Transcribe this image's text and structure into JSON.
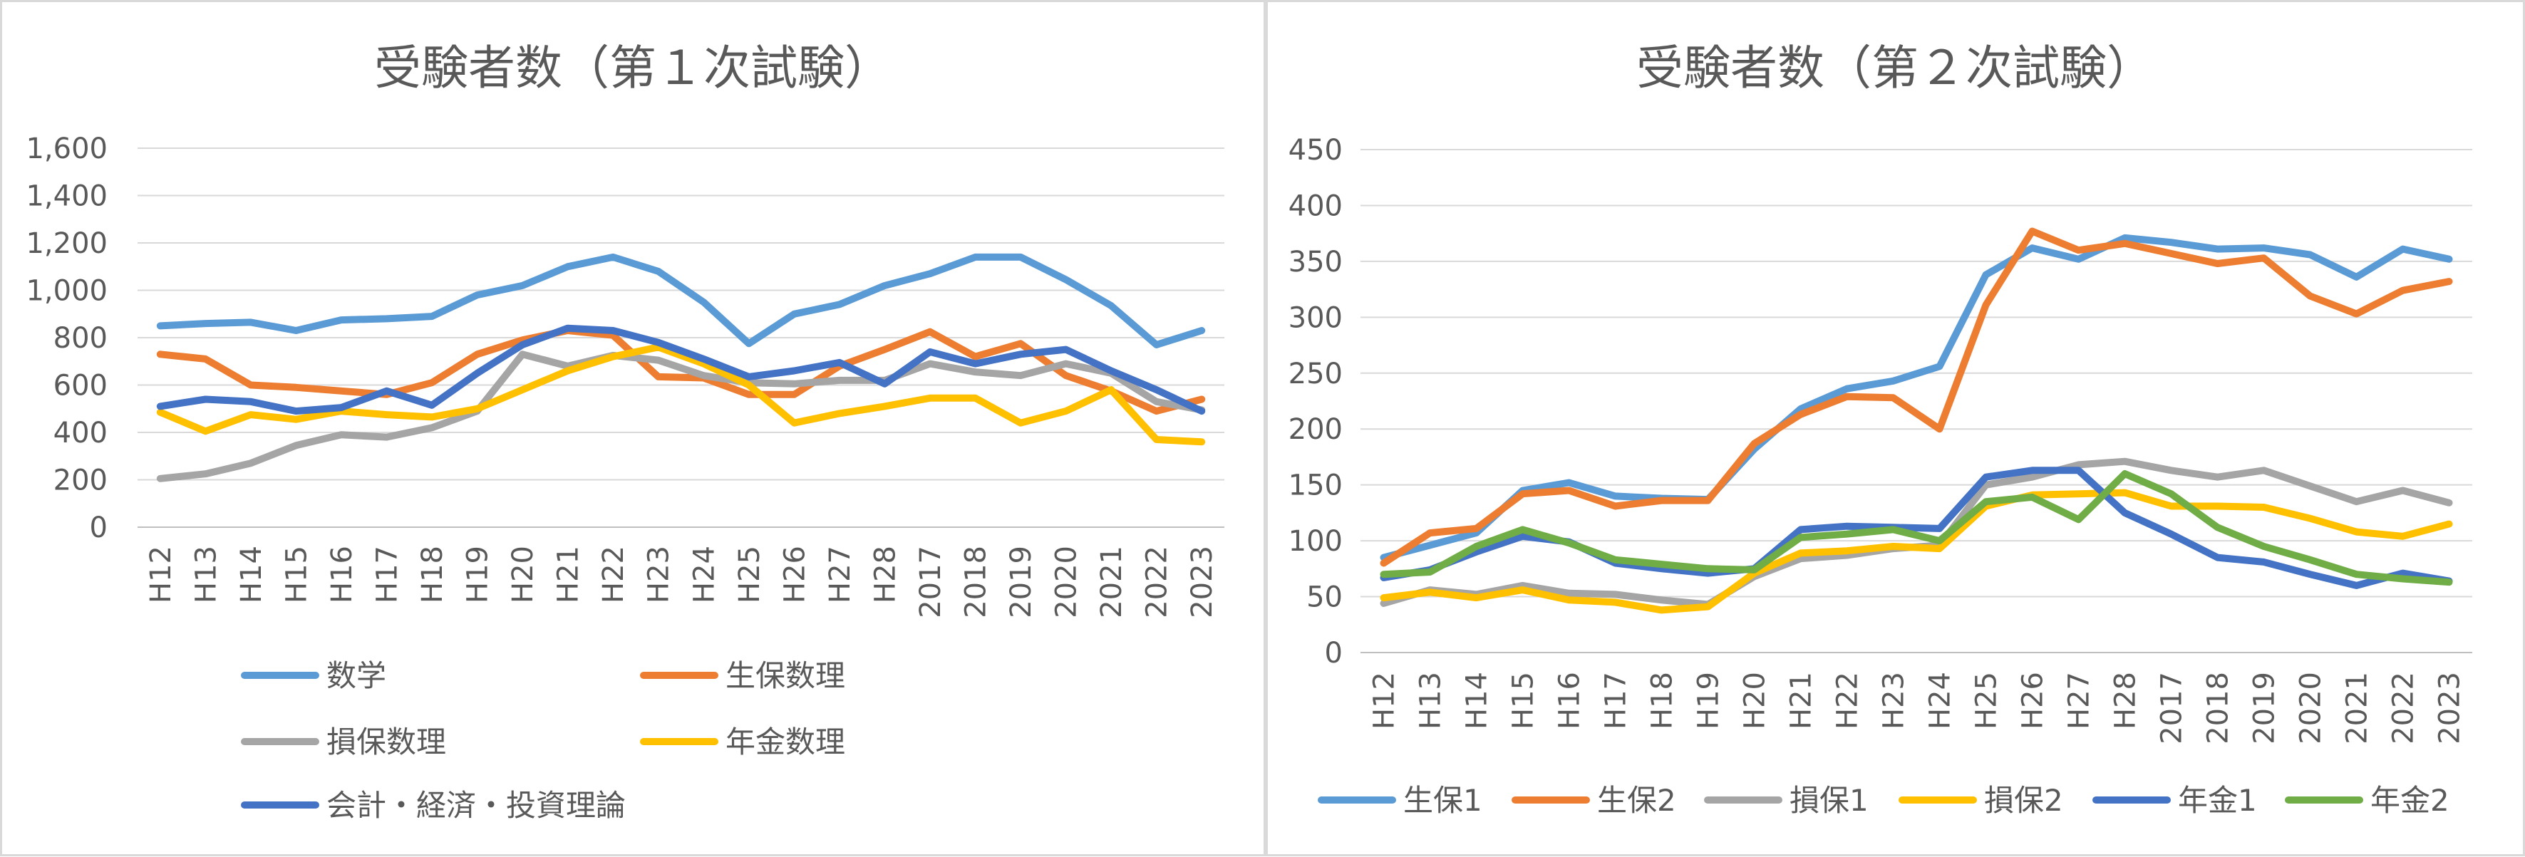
{
  "chart_data": [
    {
      "type": "line",
      "title": "受験者数（第１次試験）",
      "categories": [
        "H12",
        "H13",
        "H14",
        "H15",
        "H16",
        "H17",
        "H18",
        "H19",
        "H20",
        "H21",
        "H22",
        "H23",
        "H24",
        "H25",
        "H26",
        "H27",
        "H28",
        "2017",
        "2018",
        "2019",
        "2020",
        "2021",
        "2022",
        "2023"
      ],
      "ylim": [
        0,
        1600
      ],
      "yticks": [
        "0",
        "200",
        "400",
        "600",
        "800",
        "1,000",
        "1,200",
        "1,400",
        "1,600"
      ],
      "grid": true,
      "legend_position": "bottom",
      "series": [
        {
          "name": "数学",
          "color": "#5b9bd5",
          "values": [
            850,
            860,
            865,
            830,
            875,
            880,
            890,
            980,
            1020,
            1100,
            1140,
            1080,
            950,
            775,
            900,
            940,
            1020,
            1070,
            1140,
            1140,
            1045,
            935,
            770,
            830
          ]
        },
        {
          "name": "生保数理",
          "color": "#ed7d31",
          "values": [
            730,
            710,
            600,
            590,
            575,
            560,
            610,
            730,
            790,
            830,
            810,
            635,
            630,
            560,
            560,
            680,
            750,
            825,
            720,
            775,
            640,
            575,
            490,
            540
          ]
        },
        {
          "name": "損保数理",
          "color": "#a5a5a5",
          "values": [
            205,
            225,
            270,
            345,
            390,
            380,
            420,
            490,
            730,
            680,
            725,
            705,
            640,
            610,
            605,
            620,
            620,
            690,
            655,
            640,
            690,
            650,
            530,
            495
          ]
        },
        {
          "name": "年金数理",
          "color": "#ffc000",
          "values": [
            485,
            405,
            475,
            455,
            490,
            475,
            465,
            500,
            580,
            660,
            720,
            760,
            690,
            600,
            440,
            480,
            510,
            545,
            545,
            440,
            490,
            580,
            370,
            360
          ]
        },
        {
          "name": "会計・経済・投資理論",
          "color": "#4472c4",
          "values": [
            510,
            540,
            530,
            490,
            505,
            575,
            515,
            650,
            770,
            840,
            830,
            780,
            710,
            635,
            660,
            695,
            605,
            740,
            690,
            730,
            750,
            660,
            580,
            490
          ]
        }
      ]
    },
    {
      "type": "line",
      "title": "受験者数（第２次試験）",
      "categories": [
        "H12",
        "H13",
        "H14",
        "H15",
        "H16",
        "H17",
        "H18",
        "H19",
        "H20",
        "H21",
        "H22",
        "H23",
        "H24",
        "H25",
        "H26",
        "H27",
        "H28",
        "2017",
        "2018",
        "2019",
        "2020",
        "2021",
        "2022",
        "2023"
      ],
      "ylim": [
        0,
        450
      ],
      "yticks": [
        "0",
        "50",
        "100",
        "150",
        "200",
        "250",
        "300",
        "350",
        "400",
        "450"
      ],
      "grid": true,
      "legend_position": "bottom",
      "series": [
        {
          "name": "生保1",
          "color": "#5b9bd5",
          "values": [
            85,
            96,
            107,
            145,
            152,
            140,
            138,
            137,
            182,
            218,
            236,
            243,
            256,
            338,
            362,
            352,
            371,
            367,
            361,
            362,
            356,
            336,
            361,
            352
          ]
        },
        {
          "name": "生保2",
          "color": "#ed7d31",
          "values": [
            80,
            107,
            111,
            142,
            145,
            131,
            136,
            136,
            187,
            213,
            229,
            228,
            200,
            311,
            377,
            360,
            366,
            357,
            348,
            353,
            319,
            303,
            324,
            332
          ]
        },
        {
          "name": "損保1",
          "color": "#a5a5a5",
          "values": [
            44,
            56,
            52,
            60,
            53,
            52,
            47,
            43,
            68,
            84,
            87,
            93,
            96,
            150,
            157,
            168,
            171,
            163,
            157,
            163,
            149,
            135,
            145,
            134
          ]
        },
        {
          "name": "損保2",
          "color": "#ffc000",
          "values": [
            49,
            54,
            49,
            56,
            47,
            45,
            38,
            41,
            71,
            89,
            91,
            95,
            93,
            131,
            141,
            142,
            143,
            131,
            131,
            130,
            120,
            108,
            104,
            115
          ]
        },
        {
          "name": "年金1",
          "color": "#4472c4",
          "values": [
            67,
            74,
            90,
            104,
            99,
            80,
            75,
            71,
            75,
            110,
            113,
            112,
            111,
            157,
            163,
            163,
            125,
            106,
            85,
            81,
            70,
            60,
            71,
            64
          ]
        },
        {
          "name": "年金2",
          "color": "#70ad47",
          "values": [
            70,
            72,
            95,
            110,
            98,
            83,
            79,
            75,
            74,
            103,
            106,
            110,
            100,
            135,
            139,
            119,
            160,
            142,
            112,
            95,
            83,
            70,
            66,
            63
          ]
        }
      ]
    }
  ]
}
